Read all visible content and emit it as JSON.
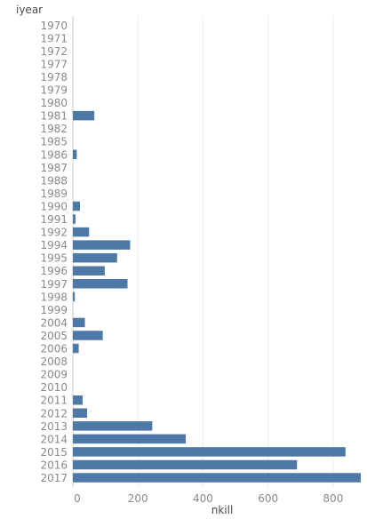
{
  "chart_data": {
    "type": "bar",
    "orientation": "horizontal",
    "ylabel": "iyear",
    "xlabel": "nkill",
    "categories": [
      "1970",
      "1971",
      "1972",
      "1977",
      "1978",
      "1979",
      "1980",
      "1981",
      "1982",
      "1985",
      "1986",
      "1987",
      "1988",
      "1989",
      "1990",
      "1991",
      "1992",
      "1994",
      "1995",
      "1996",
      "1997",
      "1998",
      "1999",
      "2004",
      "2005",
      "2006",
      "2008",
      "2009",
      "2010",
      "2011",
      "2012",
      "2013",
      "2014",
      "2015",
      "2016",
      "2017"
    ],
    "values": [
      0,
      0,
      0,
      0,
      0,
      0,
      0,
      66,
      0,
      0,
      12,
      0,
      0,
      0,
      22,
      8,
      50,
      176,
      136,
      98,
      168,
      6,
      0,
      37,
      92,
      18,
      0,
      0,
      0,
      30,
      44,
      244,
      347,
      838,
      689,
      885
    ],
    "xlim": [
      0,
      885
    ],
    "xticks": [
      0,
      200,
      400,
      600,
      800
    ],
    "grid": true,
    "bar_color": "#4e79a7"
  }
}
